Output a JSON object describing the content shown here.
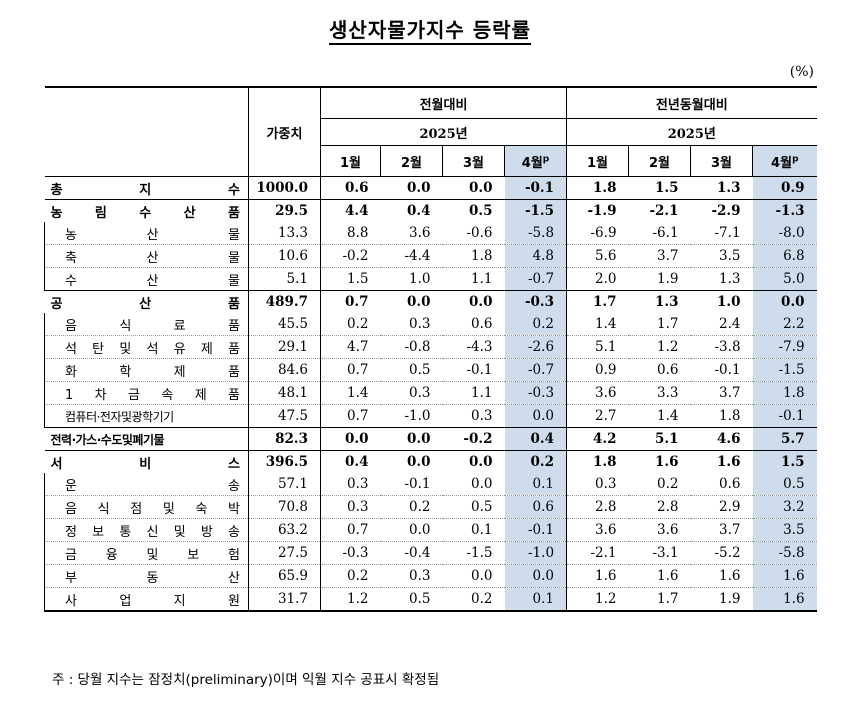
{
  "title": "생산자물가지수 등락률",
  "unit": "(%)",
  "header": {
    "weight": "가중치",
    "group1": "전월대비",
    "group2": "전년동월대비",
    "year": "2025년",
    "months": [
      "1월",
      "2월",
      "3월",
      "4월"
    ],
    "prelim_mark": "p"
  },
  "rows": [
    {
      "label": "총 지 수",
      "weight": "1000.0",
      "mom": [
        "0.6",
        "0.0",
        "0.0",
        "-0.1"
      ],
      "yoy": [
        "1.8",
        "1.5",
        "1.3",
        "0.9"
      ],
      "level": 0
    },
    {
      "label": "농 림 수 산 품",
      "weight": "29.5",
      "mom": [
        "4.4",
        "0.4",
        "0.5",
        "-1.5"
      ],
      "yoy": [
        "-1.9",
        "-2.1",
        "-2.9",
        "-1.3"
      ],
      "level": 0
    },
    {
      "label": "농 산 물",
      "weight": "13.3",
      "mom": [
        "8.8",
        "3.6",
        "-0.6",
        "-5.8"
      ],
      "yoy": [
        "-6.9",
        "-6.1",
        "-7.1",
        "-8.0"
      ],
      "level": 1
    },
    {
      "label": "축 산 물",
      "weight": "10.6",
      "mom": [
        "-0.2",
        "-4.4",
        "1.8",
        "4.8"
      ],
      "yoy": [
        "5.6",
        "3.7",
        "3.5",
        "6.8"
      ],
      "level": 1
    },
    {
      "label": "수 산 물",
      "weight": "5.1",
      "mom": [
        "1.5",
        "1.0",
        "1.1",
        "-0.7"
      ],
      "yoy": [
        "2.0",
        "1.9",
        "1.3",
        "5.0"
      ],
      "level": 1
    },
    {
      "label": "공 산 품",
      "weight": "489.7",
      "mom": [
        "0.7",
        "0.0",
        "0.0",
        "-0.3"
      ],
      "yoy": [
        "1.7",
        "1.3",
        "1.0",
        "0.0"
      ],
      "level": 0
    },
    {
      "label": "음 식 료 품",
      "weight": "45.5",
      "mom": [
        "0.2",
        "0.3",
        "0.6",
        "0.2"
      ],
      "yoy": [
        "1.4",
        "1.7",
        "2.4",
        "2.2"
      ],
      "level": 1
    },
    {
      "label": "석 탄 및 석 유 제 품",
      "weight": "29.1",
      "mom": [
        "4.7",
        "-0.8",
        "-4.3",
        "-2.6"
      ],
      "yoy": [
        "5.1",
        "1.2",
        "-3.8",
        "-7.9"
      ],
      "level": 1
    },
    {
      "label": "화 학 제 품",
      "weight": "84.6",
      "mom": [
        "0.7",
        "0.5",
        "-0.1",
        "-0.7"
      ],
      "yoy": [
        "0.9",
        "0.6",
        "-0.1",
        "-1.5"
      ],
      "level": 1
    },
    {
      "label": "1 차 금 속 제 품",
      "weight": "48.1",
      "mom": [
        "1.4",
        "0.3",
        "1.1",
        "-0.3"
      ],
      "yoy": [
        "3.6",
        "3.3",
        "3.7",
        "1.8"
      ],
      "level": 1
    },
    {
      "label": "컴퓨터·전자및광학기기",
      "weight": "47.5",
      "mom": [
        "0.7",
        "-1.0",
        "0.3",
        "0.0"
      ],
      "yoy": [
        "2.7",
        "1.4",
        "1.8",
        "-0.1"
      ],
      "level": 1,
      "narrow": true
    },
    {
      "label": "전력·가스·수도및폐기물",
      "weight": "82.3",
      "mom": [
        "0.0",
        "0.0",
        "-0.2",
        "0.4"
      ],
      "yoy": [
        "4.2",
        "5.1",
        "4.6",
        "5.7"
      ],
      "level": 0,
      "narrow": true
    },
    {
      "label": "서 비 스",
      "weight": "396.5",
      "mom": [
        "0.4",
        "0.0",
        "0.0",
        "0.2"
      ],
      "yoy": [
        "1.8",
        "1.6",
        "1.6",
        "1.5"
      ],
      "level": 0
    },
    {
      "label": "운 송",
      "weight": "57.1",
      "mom": [
        "0.3",
        "-0.1",
        "0.0",
        "0.1"
      ],
      "yoy": [
        "0.3",
        "0.2",
        "0.6",
        "0.5"
      ],
      "level": 1
    },
    {
      "label": "음 식 점 및 숙 박",
      "weight": "70.8",
      "mom": [
        "0.3",
        "0.2",
        "0.5",
        "0.6"
      ],
      "yoy": [
        "2.8",
        "2.8",
        "2.9",
        "3.2"
      ],
      "level": 1
    },
    {
      "label": "정 보 통 신 및 방 송",
      "weight": "63.2",
      "mom": [
        "0.7",
        "0.0",
        "0.1",
        "-0.1"
      ],
      "yoy": [
        "3.6",
        "3.6",
        "3.7",
        "3.5"
      ],
      "level": 1
    },
    {
      "label": "금 융 및 보 험",
      "weight": "27.5",
      "mom": [
        "-0.3",
        "-0.4",
        "-1.5",
        "-1.0"
      ],
      "yoy": [
        "-2.1",
        "-3.1",
        "-5.2",
        "-5.8"
      ],
      "level": 1
    },
    {
      "label": "부 동 산",
      "weight": "65.9",
      "mom": [
        "0.2",
        "0.3",
        "0.0",
        "0.0"
      ],
      "yoy": [
        "1.6",
        "1.6",
        "1.6",
        "1.6"
      ],
      "level": 1
    },
    {
      "label": "사 업 지 원",
      "weight": "31.7",
      "mom": [
        "1.2",
        "0.5",
        "0.2",
        "0.1"
      ],
      "yoy": [
        "1.2",
        "1.7",
        "1.9",
        "1.6"
      ],
      "level": 1
    }
  ],
  "note": "주 : 당월 지수는 잠정치(preliminary)이며 익월 지수 공표시 확정됨"
}
